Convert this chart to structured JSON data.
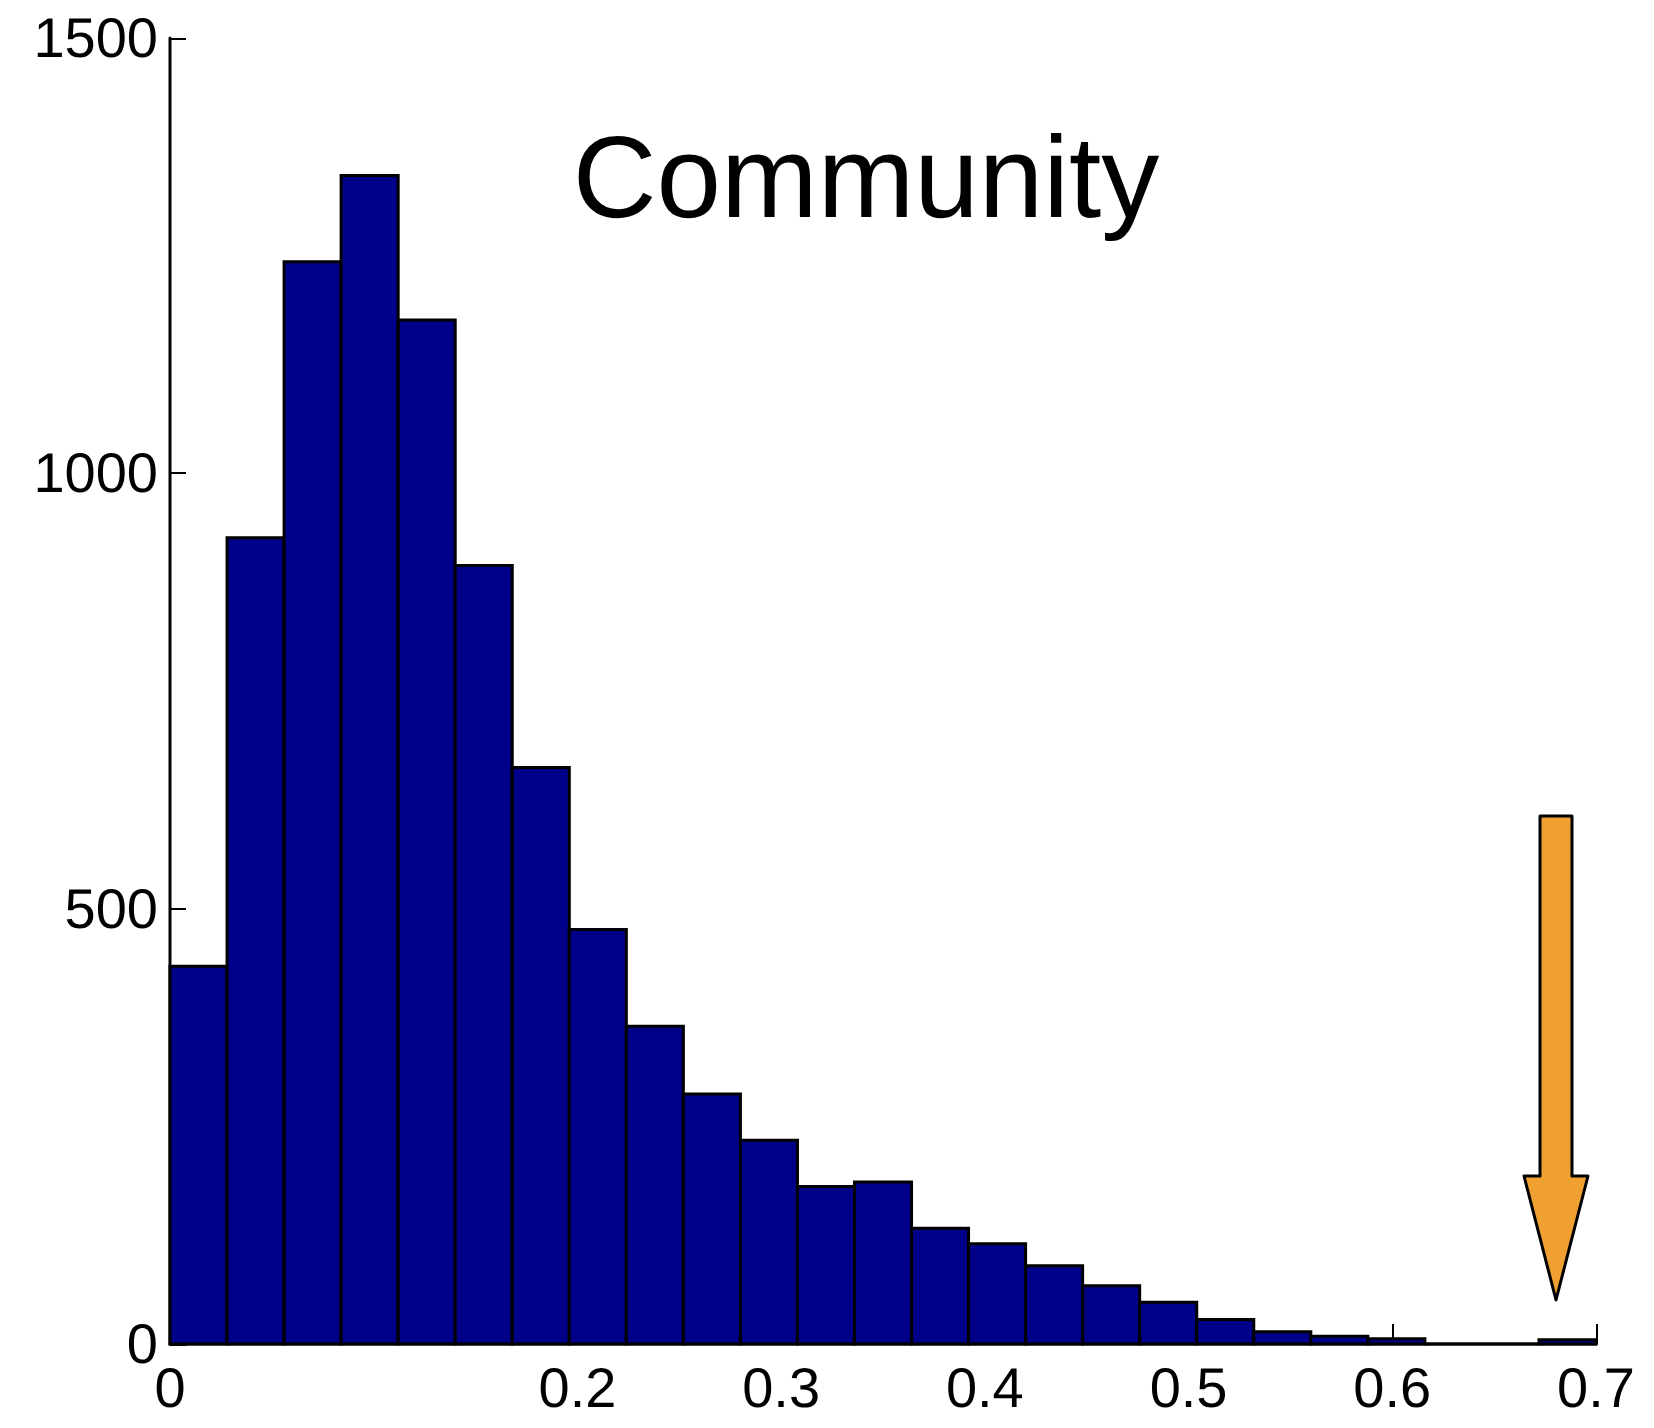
{
  "chart_data": {
    "type": "histogram",
    "title": "Community",
    "bins": [
      0,
      0.028,
      0.056,
      0.084,
      0.112,
      0.14,
      0.168,
      0.196,
      0.224,
      0.252,
      0.28,
      0.308,
      0.336,
      0.364,
      0.392,
      0.42,
      0.448,
      0.476,
      0.504,
      0.532,
      0.56,
      0.588,
      0.616,
      0.644,
      0.672,
      0.7
    ],
    "values": [
      434,
      926,
      1243,
      1342,
      1176,
      894,
      662,
      476,
      365,
      287,
      234,
      181,
      186,
      133,
      115,
      90,
      67,
      48,
      28,
      14,
      9,
      6,
      0,
      0,
      5
    ],
    "color": "#000088",
    "xlim": [
      0,
      0.7
    ],
    "xticks": [
      0,
      0.2,
      0.3,
      0.4,
      0.5,
      0.6,
      0.7
    ],
    "ylim": [
      0,
      1500
    ],
    "yticks": [
      0,
      500,
      1000,
      1500
    ],
    "grid": false
  }
}
